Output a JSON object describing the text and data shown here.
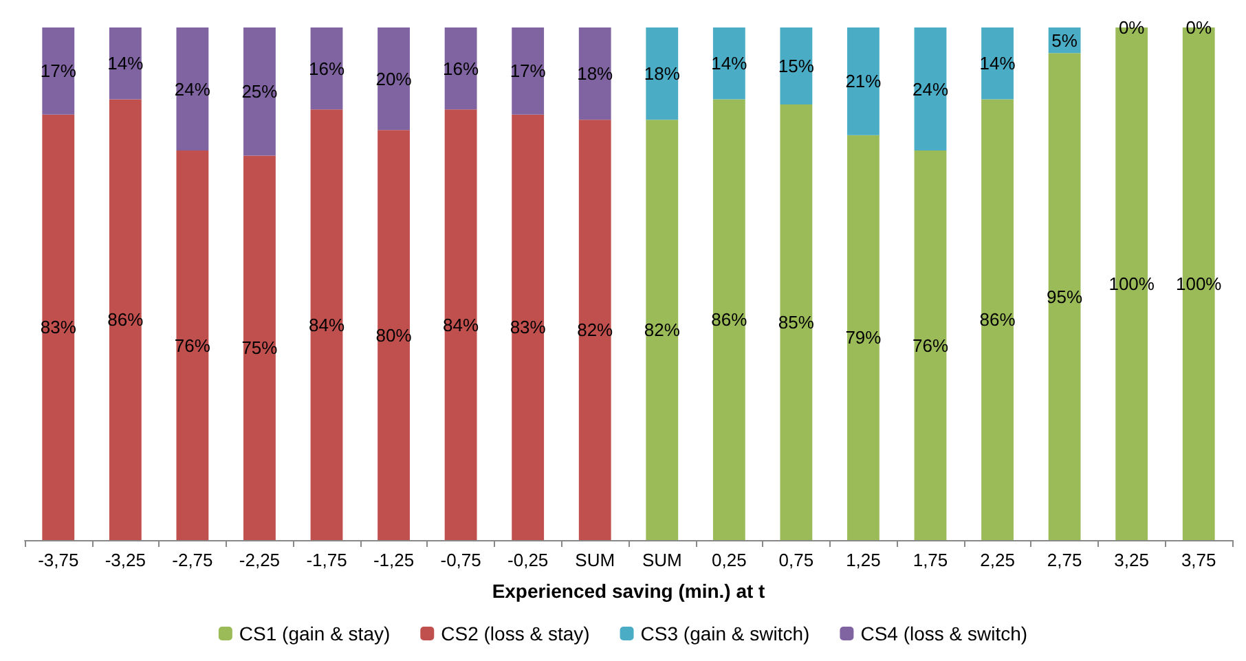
{
  "chart_data": {
    "type": "bar",
    "stacked": true,
    "xlabel": "Experienced saving (min.) at t",
    "categories": [
      "-3,75",
      "-3,25",
      "-2,75",
      "-2,25",
      "-1,75",
      "-1,25",
      "-0,75",
      "-0,25",
      "SUM",
      "SUM",
      "0,25",
      "0,75",
      "1,25",
      "1,75",
      "2,25",
      "2,75",
      "3,25",
      "3,75"
    ],
    "ylim": [
      0,
      100
    ],
    "tick_labels": "x",
    "grid": false,
    "legend": "bottom",
    "series": [
      {
        "name": "CS1 (gain & stay)",
        "color": "#9bbb59",
        "values": [
          null,
          null,
          null,
          null,
          null,
          null,
          null,
          null,
          null,
          82,
          86,
          85,
          79,
          76,
          86,
          95,
          100,
          100
        ],
        "value_labels": [
          null,
          null,
          null,
          null,
          null,
          null,
          null,
          null,
          null,
          "82%",
          "86%",
          "85%",
          "79%",
          "76%",
          "86%",
          "95%",
          "100%",
          "100%"
        ]
      },
      {
        "name": "CS2 (loss & stay)",
        "color": "#c0504d",
        "values": [
          83,
          86,
          76,
          75,
          84,
          80,
          84,
          83,
          82,
          null,
          null,
          null,
          null,
          null,
          null,
          null,
          null,
          null
        ],
        "value_labels": [
          "83%",
          "86%",
          "76%",
          "75%",
          "84%",
          "80%",
          "84%",
          "83%",
          "82%",
          null,
          null,
          null,
          null,
          null,
          null,
          null,
          null,
          null
        ]
      },
      {
        "name": "CS3 (gain & switch)",
        "color": "#4bacc6",
        "values": [
          null,
          null,
          null,
          null,
          null,
          null,
          null,
          null,
          null,
          18,
          14,
          15,
          21,
          24,
          14,
          5,
          0,
          0
        ],
        "value_labels": [
          null,
          null,
          null,
          null,
          null,
          null,
          null,
          null,
          null,
          "18%",
          "14%",
          "15%",
          "21%",
          "24%",
          "14%",
          "5%",
          "0%",
          "0%"
        ]
      },
      {
        "name": "CS4 (loss & switch)",
        "color": "#8064a2",
        "values": [
          17,
          14,
          24,
          25,
          16,
          20,
          16,
          17,
          18,
          null,
          null,
          null,
          null,
          null,
          null,
          null,
          null,
          null
        ],
        "value_labels": [
          "17%",
          "14%",
          "24%",
          "25%",
          "16%",
          "20%",
          "16%",
          "17%",
          "18%",
          null,
          null,
          null,
          null,
          null,
          null,
          null,
          null,
          null
        ]
      }
    ]
  }
}
